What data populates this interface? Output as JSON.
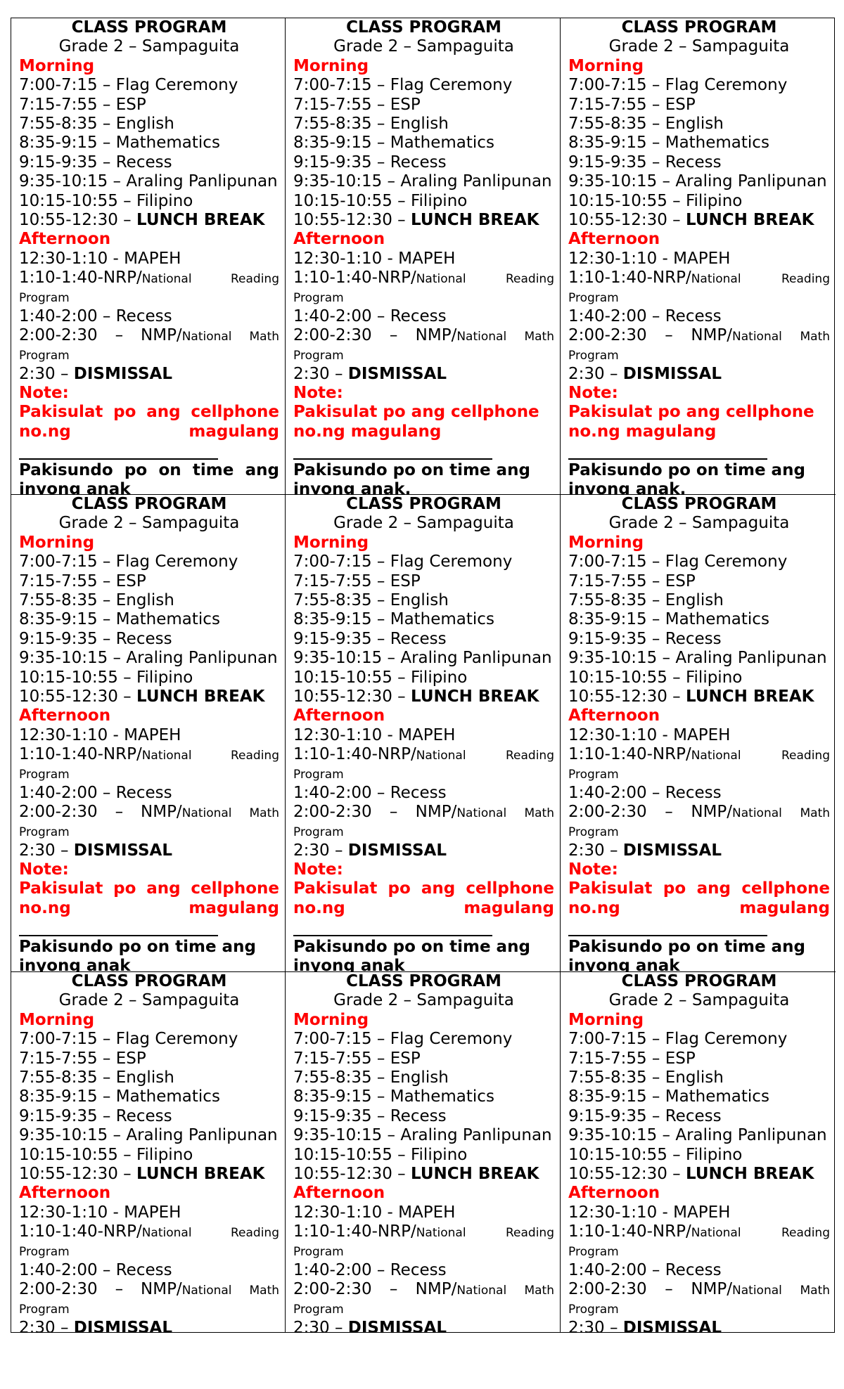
{
  "program": {
    "title": "CLASS PROGRAM",
    "grade": "Grade 2 – Sampaguita",
    "morning_label": "Morning",
    "morning_items": [
      {
        "text": "7:00-7:15 – Flag Ceremony"
      },
      {
        "text": "7:15-7:55 – ESP"
      },
      {
        "text": "7:55-8:35 – English"
      },
      {
        "text": "8:35-9:15 – Mathematics"
      },
      {
        "text": "9:15-9:35 – Recess"
      },
      {
        "text": "9:35-10:15 – Araling Panlipunan"
      },
      {
        "text": "10:15-10:55 – Filipino"
      }
    ],
    "lunch": {
      "time": "10:55-12:30 –",
      "label": "LUNCH BREAK"
    },
    "afternoon_label": "Afternoon",
    "mapeh": "12:30-1:10 - MAPEH",
    "nrp": {
      "main": "1:10-1:40-NRP/",
      "small1": "National",
      "small2": "Reading",
      "small3": "Program"
    },
    "recess2": "1:40-2:00 – Recess",
    "nmp": {
      "time": "2:00-2:30",
      "dash": "–",
      "main": "NMP/",
      "small1": "National",
      "small2": "Math",
      "small3": "Program"
    },
    "dismissal": {
      "time": "2:30 –",
      "label": "DISMISSAL"
    },
    "note_label": "Note:",
    "note_line1": "Pakisulat po ang cellphone",
    "note_line2": "no.ng magulang",
    "pickup_line1": "Pakisundo po on time ang",
    "pickup_line2_plain": "inyong anak",
    "pickup_line2_period": "inyong anak."
  },
  "cells": [
    {
      "note": true,
      "note_justified": true,
      "pickup_justified": true,
      "pickup_period": false
    },
    {
      "note": true,
      "note_justified": false,
      "pickup_justified": false,
      "pickup_period": true
    },
    {
      "note": true,
      "note_justified": false,
      "pickup_justified": false,
      "pickup_period": true
    },
    {
      "note": true,
      "note_justified": true,
      "pickup_justified": false,
      "pickup_period": false
    },
    {
      "note": true,
      "note_justified": true,
      "pickup_justified": false,
      "pickup_period": false
    },
    {
      "note": true,
      "note_justified": true,
      "pickup_justified": false,
      "pickup_period": false
    },
    {
      "note": false
    },
    {
      "note": false
    },
    {
      "note": false
    }
  ],
  "colors": {
    "accent_red": "#ff0000",
    "text": "#000000"
  }
}
